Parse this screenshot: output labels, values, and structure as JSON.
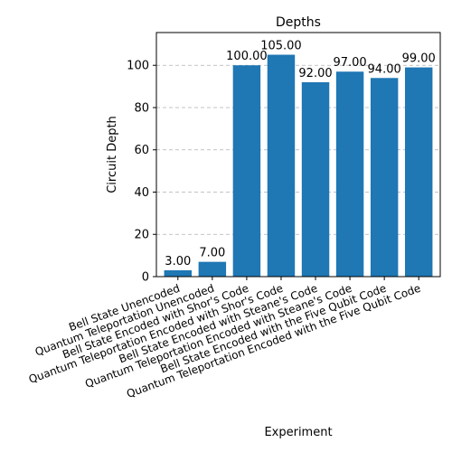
{
  "chart_data": {
    "type": "bar",
    "title": "Depths",
    "xlabel": "Experiment",
    "ylabel": "Circuit Depth",
    "categories": [
      "Bell State Unencoded",
      "Quantum Teleportation Unencoded",
      "Bell State Encoded with Shor's Code",
      "Quantum Teleportation Encoded with Shor's Code",
      "Bell State Encoded with Steane's Code",
      "Quantum Teleportation Encoded with Steane's Code",
      "Bell State Encoded with the Five Qubit Code",
      "Quantum Teleportation Encoded with the Five Qubit Code"
    ],
    "values": [
      3,
      7,
      100,
      105,
      92,
      97,
      94,
      99
    ],
    "data_labels": [
      "3.00",
      "7.00",
      "100.00",
      "105.00",
      "92.00",
      "97.00",
      "94.00",
      "99.00"
    ],
    "ylim": [
      0,
      115.5
    ],
    "yticks": [
      0,
      20,
      40,
      60,
      80,
      100
    ],
    "grid": "y-dashed",
    "bar_color": "#1f77b4"
  }
}
